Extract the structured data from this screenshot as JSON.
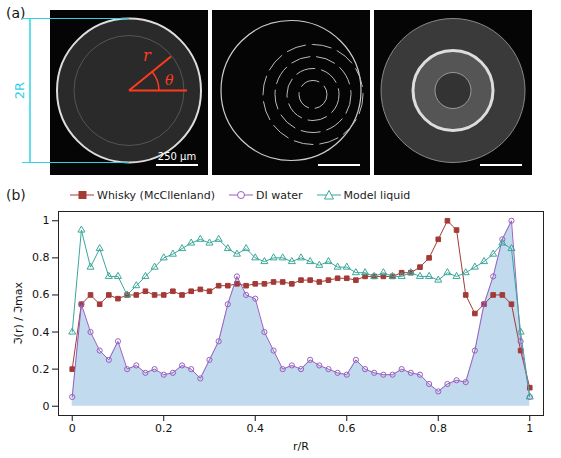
{
  "panel_a": {
    "label": "(a)",
    "dimension": "2R",
    "radius": "r",
    "angle": "θ",
    "scale_bar": "250 μm"
  },
  "chart_data": {
    "type": "line",
    "title": "(b)",
    "x_label": "r/R",
    "y_label": "ℑ(r) / ℑmax",
    "x": [
      0,
      0.02,
      0.04,
      0.06,
      0.08,
      0.1,
      0.12,
      0.14,
      0.16,
      0.18,
      0.2,
      0.22,
      0.24,
      0.26,
      0.28,
      0.3,
      0.32,
      0.34,
      0.36,
      0.38,
      0.4,
      0.42,
      0.44,
      0.46,
      0.48,
      0.5,
      0.52,
      0.54,
      0.56,
      0.58,
      0.6,
      0.62,
      0.64,
      0.66,
      0.68,
      0.7,
      0.72,
      0.74,
      0.76,
      0.78,
      0.8,
      0.82,
      0.84,
      0.86,
      0.88,
      0.9,
      0.92,
      0.94,
      0.96,
      0.98,
      1.0
    ],
    "series": [
      {
        "name": "Whisky (McCllenland)",
        "color": "#a33a36",
        "marker": "square",
        "type": "line",
        "values": [
          0.2,
          0.55,
          0.6,
          0.55,
          0.6,
          0.58,
          0.6,
          0.6,
          0.62,
          0.6,
          0.6,
          0.62,
          0.6,
          0.62,
          0.63,
          0.62,
          0.65,
          0.65,
          0.66,
          0.65,
          0.66,
          0.66,
          0.67,
          0.67,
          0.66,
          0.68,
          0.68,
          0.67,
          0.68,
          0.69,
          0.69,
          0.68,
          0.7,
          0.7,
          0.7,
          0.7,
          0.72,
          0.72,
          0.75,
          0.8,
          0.9,
          1.0,
          0.95,
          0.6,
          0.5,
          0.55,
          0.6,
          0.6,
          0.55,
          0.3,
          0.1
        ]
      },
      {
        "name": "DI water",
        "color": "#9b5fc0",
        "marker": "circle",
        "type": "area",
        "values": [
          0.05,
          0.55,
          0.4,
          0.3,
          0.25,
          0.35,
          0.2,
          0.22,
          0.18,
          0.2,
          0.17,
          0.18,
          0.22,
          0.2,
          0.15,
          0.25,
          0.35,
          0.55,
          0.7,
          0.6,
          0.58,
          0.4,
          0.3,
          0.2,
          0.22,
          0.2,
          0.25,
          0.22,
          0.2,
          0.18,
          0.17,
          0.25,
          0.2,
          0.18,
          0.17,
          0.17,
          0.2,
          0.18,
          0.17,
          0.12,
          0.08,
          0.12,
          0.14,
          0.13,
          0.3,
          0.55,
          0.7,
          0.9,
          1.0,
          0.35,
          0.05
        ]
      },
      {
        "name": "Model liquid",
        "color": "#3aa89a",
        "marker": "triangle",
        "type": "line",
        "values": [
          0.4,
          0.95,
          0.75,
          0.85,
          0.7,
          0.7,
          0.6,
          0.65,
          0.7,
          0.75,
          0.8,
          0.82,
          0.85,
          0.88,
          0.9,
          0.88,
          0.9,
          0.85,
          0.82,
          0.85,
          0.8,
          0.78,
          0.8,
          0.8,
          0.78,
          0.8,
          0.78,
          0.76,
          0.78,
          0.75,
          0.75,
          0.72,
          0.72,
          0.7,
          0.72,
          0.7,
          0.7,
          0.72,
          0.7,
          0.7,
          0.68,
          0.72,
          0.7,
          0.72,
          0.75,
          0.78,
          0.82,
          0.88,
          0.85,
          0.4,
          0.05
        ]
      }
    ],
    "xlim": [
      -0.03,
      1.03
    ],
    "xticks": [
      0,
      0.2,
      0.4,
      0.6,
      0.8,
      1
    ],
    "ylim": [
      -0.05,
      1.05
    ],
    "yticks": [
      0,
      0.2,
      0.4,
      0.6,
      0.8,
      1
    ],
    "legend": "top",
    "grid": false
  }
}
